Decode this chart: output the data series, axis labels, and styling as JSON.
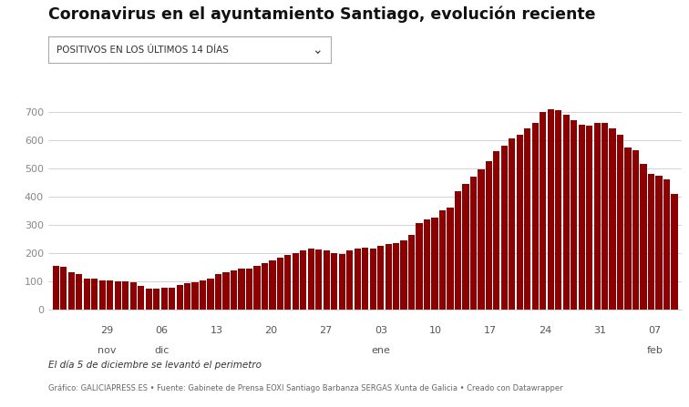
{
  "title": "Coronavirus en el ayuntamiento Santiago, evolución reciente",
  "dropdown_label": "POSITIVOS EN LOS ÚLTIMOS 14 DÍAS",
  "bar_color": "#8B0000",
  "background_color": "#ffffff",
  "grid_color": "#cccccc",
  "yticks": [
    0,
    100,
    200,
    300,
    400,
    500,
    600,
    700
  ],
  "ylim": [
    0,
    750
  ],
  "footnote1": "El día 5 de diciembre se levantó el perimetro",
  "footnote2": "Gráfico: GALICIAPRESS.ES • Fuente: Gabinete de Prensa EOXI Santiago Barbanza SERGAS Xunta de Galicia • Creado con Datawrapper",
  "tick_positions": [
    7,
    14,
    21,
    28,
    35,
    42,
    49,
    56,
    63,
    70,
    77
  ],
  "tick_days": [
    "29",
    "06",
    "13",
    "20",
    "27",
    "03",
    "10",
    "17",
    "24",
    "31",
    "07"
  ],
  "tick_months": [
    "nov",
    "dic",
    "",
    "",
    "",
    "ene",
    "",
    "",
    "",
    "",
    "feb"
  ],
  "values": [
    155,
    150,
    130,
    125,
    110,
    110,
    103,
    103,
    100,
    100,
    95,
    83,
    72,
    72,
    77,
    78,
    85,
    93,
    95,
    102,
    108,
    125,
    130,
    138,
    143,
    145,
    155,
    163,
    172,
    182,
    193,
    200,
    210,
    215,
    213,
    208,
    200,
    195,
    210,
    215,
    220,
    215,
    225,
    230,
    235,
    245,
    265,
    305,
    320,
    325,
    350,
    360,
    420,
    445,
    470,
    495,
    525,
    560,
    580,
    605,
    620,
    640,
    660,
    700,
    710,
    705,
    690,
    670,
    655,
    650,
    660,
    660,
    640,
    620,
    575,
    565,
    515,
    480,
    475,
    460,
    410
  ]
}
